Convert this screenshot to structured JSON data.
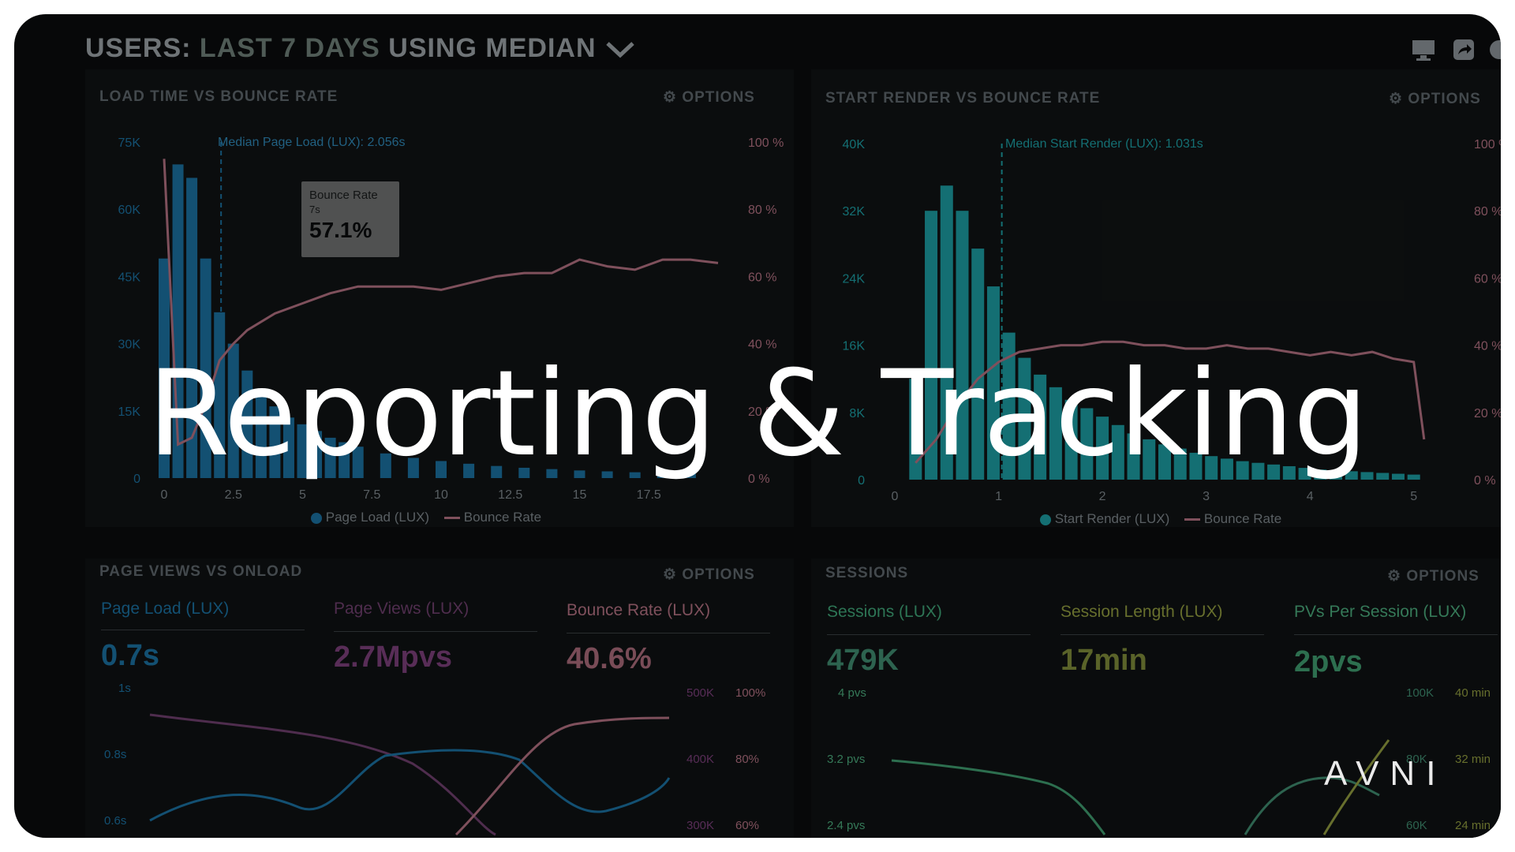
{
  "header": {
    "prefix": "USERS:",
    "range": "LAST 7 DAYS",
    "method": "USING MEDIAN"
  },
  "headline": "Reporting & Tracking",
  "brand": "AVNI",
  "colors": {
    "blue": "#1b6f9e",
    "teal": "#1c9aa0",
    "pink": "#b07080",
    "purple": "#8a4f86",
    "green": "#4aa87a",
    "olive": "#8f9a3f"
  },
  "panels": {
    "load": {
      "title": "LOAD TIME VS BOUNCE RATE",
      "options": "OPTIONS",
      "y_ticks": [
        "75K",
        "60K",
        "45K",
        "30K",
        "15K",
        "0"
      ],
      "y2_ticks": [
        "100 %",
        "80 %",
        "60 %",
        "40 %",
        "20 %",
        "0 %"
      ],
      "x_ticks": [
        "0",
        "2.5",
        "5",
        "7.5",
        "10",
        "12.5",
        "15",
        "17.5"
      ],
      "median_label": "Median Page Load (LUX): 2.056s",
      "tooltip": {
        "title": "Bounce Rate",
        "sub": "7s",
        "value": "57.1%"
      },
      "legend": [
        "Page Load (LUX)",
        "Bounce Rate"
      ]
    },
    "render": {
      "title": "START RENDER VS BOUNCE RATE",
      "options": "OPTIONS",
      "y_ticks": [
        "40K",
        "32K",
        "24K",
        "16K",
        "8K",
        "0"
      ],
      "y2_ticks": [
        "100 %",
        "80 %",
        "60 %",
        "40 %",
        "20 %",
        "0 %"
      ],
      "x_ticks": [
        "0",
        "1",
        "2",
        "3",
        "4",
        "5"
      ],
      "median_label": "Median Start Render (LUX): 1.031s",
      "legend": [
        "Start Render (LUX)",
        "Bounce Rate"
      ]
    },
    "pageviews": {
      "title": "PAGE VIEWS VS ONLOAD",
      "options": "OPTIONS",
      "metrics": [
        {
          "label": "Page Load (LUX)",
          "value": "0.7s"
        },
        {
          "label": "Page Views (LUX)",
          "value": "2.7Mpvs"
        },
        {
          "label": "Bounce Rate (LUX)",
          "value": "40.6%"
        }
      ],
      "y_ticks": [
        "1s",
        "0.8s",
        "0.6s"
      ],
      "y2_ticks": [
        "500K",
        "400K",
        "300K"
      ],
      "y3_ticks": [
        "100%",
        "80%",
        "60%"
      ]
    },
    "sessions": {
      "title": "SESSIONS",
      "options": "OPTIONS",
      "metrics": [
        {
          "label": "Sessions (LUX)",
          "value": "479K"
        },
        {
          "label": "Session Length (LUX)",
          "value": "17min"
        },
        {
          "label": "PVs Per Session (LUX)",
          "value": "2pvs"
        }
      ],
      "y_ticks": [
        "4 pvs",
        "3.2 pvs",
        "2.4 pvs"
      ],
      "y2_ticks": [
        "100K",
        "80K",
        "60K"
      ],
      "y3_ticks": [
        "40 min",
        "32 min",
        "24 min"
      ]
    }
  },
  "chart_data": [
    {
      "type": "bar",
      "title": "LOAD TIME VS BOUNCE RATE",
      "xlim": [
        0,
        20
      ],
      "ylim": [
        0,
        75000
      ],
      "y2lim": [
        0,
        100
      ],
      "series": [
        {
          "name": "Page Load (LUX)",
          "x": [
            0,
            0.5,
            1,
            1.5,
            2,
            2.5,
            3,
            3.5,
            4,
            4.5,
            5,
            5.5,
            6,
            6.5,
            7,
            8,
            9,
            10,
            11,
            12,
            13,
            14,
            15,
            16,
            17,
            18,
            19
          ],
          "values": [
            49000,
            70000,
            67000,
            49000,
            37000,
            30000,
            24000,
            19000,
            16000,
            13500,
            12000,
            10500,
            9000,
            8000,
            7000,
            5500,
            4500,
            3800,
            3200,
            2700,
            2300,
            2000,
            1700,
            1500,
            1300,
            1100,
            1000
          ]
        },
        {
          "name": "Bounce Rate",
          "x": [
            0,
            0.5,
            1,
            1.5,
            2,
            2.5,
            3,
            4,
            5,
            6,
            7,
            8,
            9,
            10,
            11,
            12,
            13,
            14,
            15,
            16,
            17,
            18,
            19,
            20
          ],
          "values": [
            95,
            10,
            12,
            22,
            35,
            40,
            44,
            49,
            52,
            55,
            57,
            57,
            57,
            56,
            58,
            60,
            61,
            61,
            65,
            63,
            62,
            65,
            65,
            64
          ]
        }
      ],
      "median_x": 2.056,
      "legend_position": "bottom"
    },
    {
      "type": "bar",
      "title": "START RENDER VS BOUNCE RATE",
      "xlim": [
        0,
        5.2
      ],
      "ylim": [
        0,
        40000
      ],
      "y2lim": [
        0,
        100
      ],
      "series": [
        {
          "name": "Start Render (LUX)",
          "x": [
            0.2,
            0.35,
            0.5,
            0.65,
            0.8,
            0.95,
            1.1,
            1.25,
            1.4,
            1.55,
            1.7,
            1.85,
            2.0,
            2.15,
            2.3,
            2.45,
            2.6,
            2.75,
            2.9,
            3.05,
            3.2,
            3.35,
            3.5,
            3.65,
            3.8,
            3.95,
            4.1,
            4.25,
            4.4,
            4.55,
            4.7,
            4.85,
            5.0
          ],
          "values": [
            12000,
            32000,
            35000,
            32000,
            27500,
            23000,
            17500,
            14500,
            12500,
            11000,
            9500,
            8500,
            7500,
            6500,
            5500,
            4800,
            4200,
            3700,
            3200,
            2800,
            2500,
            2200,
            2000,
            1800,
            1600,
            1400,
            1200,
            1100,
            1000,
            900,
            800,
            700,
            600
          ]
        },
        {
          "name": "Bounce Rate",
          "x": [
            0.2,
            0.4,
            0.6,
            0.8,
            1.0,
            1.2,
            1.4,
            1.6,
            1.8,
            2.0,
            2.2,
            2.4,
            2.6,
            2.8,
            3.0,
            3.2,
            3.4,
            3.6,
            3.8,
            4.0,
            4.2,
            4.4,
            4.6,
            4.8,
            5.0,
            5.1
          ],
          "values": [
            5,
            12,
            22,
            30,
            35,
            38,
            39,
            40,
            40,
            41,
            41,
            40,
            40,
            39,
            39,
            40,
            39,
            39,
            38,
            37,
            38,
            37,
            38,
            36,
            35,
            12
          ]
        }
      ],
      "median_x": 1.031,
      "legend_position": "bottom"
    }
  ]
}
